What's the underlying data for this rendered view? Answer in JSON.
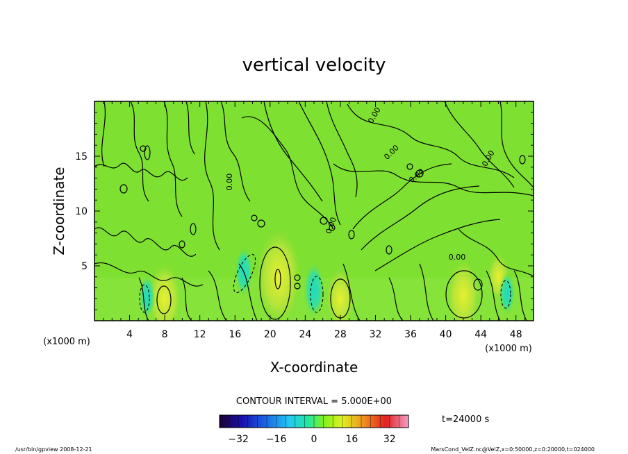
{
  "chart_data": {
    "type": "heatmap",
    "title": "vertical velocity",
    "xlabel": "X-coordinate",
    "ylabel": "Z-coordinate",
    "x_unit": "(x1000 m)",
    "y_unit": "(x1000 m)",
    "xlim": [
      0,
      50
    ],
    "ylim": [
      0,
      20
    ],
    "x_ticks": [
      "4",
      "8",
      "12",
      "16",
      "20",
      "24",
      "28",
      "32",
      "36",
      "40",
      "44",
      "48"
    ],
    "y_ticks": [
      "5",
      "10",
      "15"
    ],
    "contour_interval": "CONTOUR INTERVAL = 5.000E+00",
    "time_label": "t=24000 s",
    "colorbar": {
      "range": [
        -40,
        40
      ],
      "ticks": [
        "-32",
        "-16",
        "0",
        "16",
        "32"
      ]
    },
    "contour_labels": [
      "0.00",
      "0.00",
      "0.00",
      "0.00",
      "0.00",
      "0.00",
      "0.00"
    ],
    "updrafts": [
      {
        "x": 8,
        "z": 2,
        "w": 10
      },
      {
        "x": 21,
        "z": 4,
        "w": 15
      },
      {
        "x": 28,
        "z": 2,
        "w": 8
      },
      {
        "x": 42,
        "z": 2.3,
        "w": 10
      },
      {
        "x": 46,
        "z": 4,
        "w": 5
      }
    ],
    "downdrafts": [
      {
        "x": 6,
        "z": 2.2,
        "w": -8
      },
      {
        "x": 17,
        "z": 4.5,
        "w": -10
      },
      {
        "x": 25,
        "z": 2.8,
        "w": -12
      },
      {
        "x": 47,
        "z": 2.5,
        "w": -8
      }
    ]
  },
  "footer": {
    "left": "/usr/bin/gpview  2008-12-21",
    "right": "MarsCond_VelZ.nc@VelZ,x=0:50000,z=0:20000,t=024000"
  }
}
